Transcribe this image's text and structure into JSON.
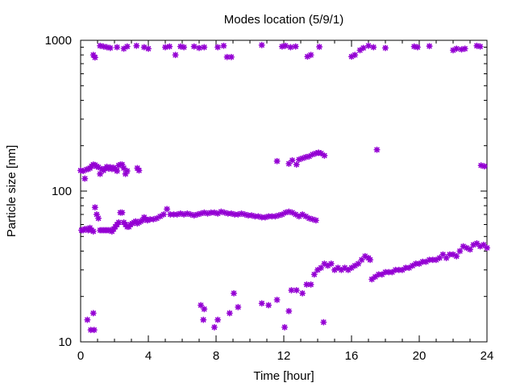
{
  "chart_data": {
    "type": "scatter",
    "title": "Modes location (5/9/1)",
    "xlabel": "Time [hour]",
    "ylabel": "Particle size [nm]",
    "x_scale": "linear",
    "y_scale": "log",
    "xlim": [
      0,
      24
    ],
    "ylim": [
      10,
      1000
    ],
    "x_ticks": [
      0,
      4,
      8,
      12,
      16,
      20,
      24
    ],
    "x_tick_labels": [
      "0",
      "4",
      "8",
      "12",
      "16",
      "20",
      "24"
    ],
    "y_ticks": [
      10,
      100,
      1000
    ],
    "y_tick_labels": [
      "10",
      "100",
      "1000"
    ],
    "grid": false,
    "legend": "none",
    "marker": "asterisk",
    "color": "#9400d3",
    "series": [
      {
        "points": [
          [
            0,
            137
          ],
          [
            0.15,
            136
          ],
          [
            0.25,
            121
          ],
          [
            0.35,
            139
          ],
          [
            0.45,
            140
          ],
          [
            0.55,
            142
          ],
          [
            0.65,
            146
          ],
          [
            0.75,
            150
          ],
          [
            0.85,
            149
          ],
          [
            0.95,
            146
          ],
          [
            1.05,
            144
          ],
          [
            1.15,
            130
          ],
          [
            1.25,
            140
          ],
          [
            1.35,
            137
          ],
          [
            1.45,
            141
          ],
          [
            1.55,
            145
          ],
          [
            1.65,
            141
          ],
          [
            1.75,
            144
          ],
          [
            1.85,
            140
          ],
          [
            1.95,
            143
          ],
          [
            2.05,
            140
          ],
          [
            2.15,
            136
          ],
          [
            2.25,
            148
          ],
          [
            2.35,
            150
          ],
          [
            2.45,
            150
          ],
          [
            2.55,
            142
          ],
          [
            2.65,
            130
          ],
          [
            2.75,
            136
          ],
          [
            3.35,
            142
          ],
          [
            3.45,
            137
          ],
          [
            23.65,
            148
          ],
          [
            23.85,
            146
          ],
          [
            0.05,
            55
          ],
          [
            0.15,
            55
          ],
          [
            0.25,
            56
          ],
          [
            0.35,
            56
          ],
          [
            0.45,
            55
          ],
          [
            0.55,
            57
          ],
          [
            0.65,
            55
          ],
          [
            0.75,
            54
          ],
          [
            0.85,
            78
          ],
          [
            0.95,
            70
          ],
          [
            1.05,
            66
          ],
          [
            1.15,
            55
          ],
          [
            1.25,
            55
          ],
          [
            1.35,
            55
          ],
          [
            1.45,
            55
          ],
          [
            1.55,
            55
          ],
          [
            1.65,
            55
          ],
          [
            1.75,
            55
          ],
          [
            1.85,
            54
          ],
          [
            1.95,
            56
          ],
          [
            2.05,
            58
          ],
          [
            2.15,
            60
          ],
          [
            2.25,
            62
          ],
          [
            2.35,
            72
          ],
          [
            2.45,
            72
          ],
          [
            2.55,
            62
          ],
          [
            2.65,
            60
          ],
          [
            2.75,
            58
          ],
          [
            2.85,
            58
          ],
          [
            2.95,
            60
          ],
          [
            3.05,
            61
          ],
          [
            3.15,
            62
          ],
          [
            3.25,
            63
          ],
          [
            3.35,
            61
          ],
          [
            3.45,
            62
          ],
          [
            3.55,
            63
          ],
          [
            3.65,
            64
          ],
          [
            3.75,
            67
          ],
          [
            3.85,
            65
          ],
          [
            3.95,
            64
          ],
          [
            4.1,
            65
          ],
          [
            4.3,
            65
          ],
          [
            4.5,
            66
          ],
          [
            4.7,
            68
          ],
          [
            4.9,
            70
          ],
          [
            5.1,
            76
          ],
          [
            5.3,
            70
          ],
          [
            5.5,
            70
          ],
          [
            5.7,
            70
          ],
          [
            5.9,
            71
          ],
          [
            6.1,
            70
          ],
          [
            6.3,
            71
          ],
          [
            6.5,
            70
          ],
          [
            6.7,
            69
          ],
          [
            6.9,
            70
          ],
          [
            7.1,
            71
          ],
          [
            7.3,
            72
          ],
          [
            7.5,
            71
          ],
          [
            7.7,
            72
          ],
          [
            7.9,
            72
          ],
          [
            8.1,
            71
          ],
          [
            8.3,
            73
          ],
          [
            8.5,
            72
          ],
          [
            8.7,
            71
          ],
          [
            8.9,
            71
          ],
          [
            9.1,
            70
          ],
          [
            9.3,
            70
          ],
          [
            9.5,
            71
          ],
          [
            9.7,
            70
          ],
          [
            9.9,
            69
          ],
          [
            10.1,
            69
          ],
          [
            10.3,
            68
          ],
          [
            10.5,
            68
          ],
          [
            10.7,
            67
          ],
          [
            10.9,
            67
          ],
          [
            11.1,
            68
          ],
          [
            11.3,
            68
          ],
          [
            11.5,
            68
          ],
          [
            11.7,
            69
          ],
          [
            11.9,
            70
          ],
          [
            12.1,
            72
          ],
          [
            12.3,
            73
          ],
          [
            12.5,
            72
          ],
          [
            12.7,
            70
          ],
          [
            12.9,
            68
          ],
          [
            13.1,
            70
          ],
          [
            13.3,
            68
          ],
          [
            13.5,
            66
          ],
          [
            13.7,
            65
          ],
          [
            13.9,
            64
          ],
          [
            0.4,
            14
          ],
          [
            0.6,
            12
          ],
          [
            0.75,
            15.5
          ],
          [
            0.8,
            12
          ],
          [
            7.1,
            17.5
          ],
          [
            7.3,
            16.5
          ],
          [
            7.25,
            14
          ],
          [
            7.9,
            12.5
          ],
          [
            8.1,
            14
          ],
          [
            8.8,
            15.5
          ],
          [
            9.05,
            21
          ],
          [
            9.3,
            17
          ],
          [
            10.7,
            18
          ],
          [
            11.1,
            17.5
          ],
          [
            11.6,
            19
          ],
          [
            12.05,
            12.5
          ],
          [
            12.3,
            16
          ],
          [
            12.45,
            22
          ],
          [
            12.75,
            22
          ],
          [
            13.1,
            21
          ],
          [
            13.35,
            24
          ],
          [
            13.6,
            24
          ],
          [
            14.35,
            13.5
          ],
          [
            13.8,
            28
          ],
          [
            14.0,
            30
          ],
          [
            14.2,
            31
          ],
          [
            14.4,
            33
          ],
          [
            14.6,
            32
          ],
          [
            14.8,
            33
          ],
          [
            15.0,
            30
          ],
          [
            15.2,
            31
          ],
          [
            15.4,
            30
          ],
          [
            15.6,
            31
          ],
          [
            15.8,
            30
          ],
          [
            16.0,
            31
          ],
          [
            16.2,
            32
          ],
          [
            16.4,
            33
          ],
          [
            16.6,
            35
          ],
          [
            16.8,
            37
          ],
          [
            17.0,
            36
          ],
          [
            17.1,
            35
          ],
          [
            17.2,
            26
          ],
          [
            17.4,
            27
          ],
          [
            17.6,
            28
          ],
          [
            17.8,
            28
          ],
          [
            18.0,
            29
          ],
          [
            18.2,
            29
          ],
          [
            18.4,
            29
          ],
          [
            18.6,
            30
          ],
          [
            18.8,
            30
          ],
          [
            19.0,
            30
          ],
          [
            19.2,
            31
          ],
          [
            19.4,
            31
          ],
          [
            19.6,
            32
          ],
          [
            19.8,
            33
          ],
          [
            20.0,
            33
          ],
          [
            20.2,
            34
          ],
          [
            20.4,
            34
          ],
          [
            20.6,
            35
          ],
          [
            20.8,
            35
          ],
          [
            21.0,
            35
          ],
          [
            21.2,
            36
          ],
          [
            21.4,
            38
          ],
          [
            21.6,
            36
          ],
          [
            21.8,
            38
          ],
          [
            22.0,
            38
          ],
          [
            22.2,
            37
          ],
          [
            22.4,
            40
          ],
          [
            22.6,
            43
          ],
          [
            22.8,
            42
          ],
          [
            23.0,
            41
          ],
          [
            23.2,
            44
          ],
          [
            23.4,
            45
          ],
          [
            23.6,
            43
          ],
          [
            23.8,
            44
          ],
          [
            24.0,
            42
          ],
          [
            0.75,
            800
          ],
          [
            0.85,
            770
          ],
          [
            1.15,
            920
          ],
          [
            1.35,
            910
          ],
          [
            1.55,
            900
          ],
          [
            1.75,
            890
          ],
          [
            2.15,
            900
          ],
          [
            2.55,
            880
          ],
          [
            2.75,
            910
          ],
          [
            3.3,
            920
          ],
          [
            3.75,
            900
          ],
          [
            4.0,
            880
          ],
          [
            5.0,
            900
          ],
          [
            5.25,
            910
          ],
          [
            5.6,
            800
          ],
          [
            5.9,
            910
          ],
          [
            6.1,
            900
          ],
          [
            6.7,
            910
          ],
          [
            7.0,
            890
          ],
          [
            7.3,
            900
          ],
          [
            8.1,
            900
          ],
          [
            8.45,
            920
          ],
          [
            8.65,
            775
          ],
          [
            8.9,
            775
          ],
          [
            10.7,
            930
          ],
          [
            11.9,
            910
          ],
          [
            12.1,
            920
          ],
          [
            12.4,
            900
          ],
          [
            12.7,
            910
          ],
          [
            13.4,
            780
          ],
          [
            13.6,
            800
          ],
          [
            14.1,
            905
          ],
          [
            16.0,
            780
          ],
          [
            16.2,
            800
          ],
          [
            16.5,
            860
          ],
          [
            16.7,
            890
          ],
          [
            17.0,
            920
          ],
          [
            17.3,
            900
          ],
          [
            18.0,
            890
          ],
          [
            19.7,
            910
          ],
          [
            19.9,
            900
          ],
          [
            20.6,
            915
          ],
          [
            22.0,
            860
          ],
          [
            22.2,
            880
          ],
          [
            22.5,
            870
          ],
          [
            22.7,
            880
          ],
          [
            23.4,
            920
          ],
          [
            23.6,
            910
          ],
          [
            11.6,
            158
          ],
          [
            12.3,
            152
          ],
          [
            12.5,
            160
          ],
          [
            12.75,
            150
          ],
          [
            12.9,
            162
          ],
          [
            13.1,
            165
          ],
          [
            13.3,
            168
          ],
          [
            13.5,
            170
          ],
          [
            13.7,
            175
          ],
          [
            13.9,
            178
          ],
          [
            14.05,
            180
          ],
          [
            14.2,
            178
          ],
          [
            14.4,
            172
          ],
          [
            17.5,
            188
          ]
        ]
      }
    ]
  }
}
